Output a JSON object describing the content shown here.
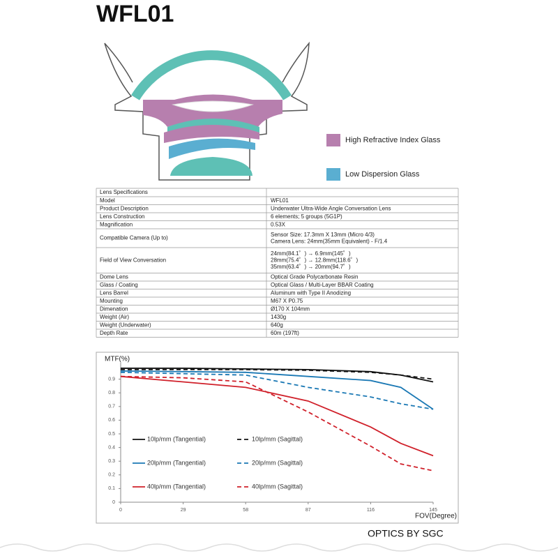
{
  "header": {
    "title": "WFL01"
  },
  "legend": {
    "items": [
      {
        "label": "High Refractive Index Glass",
        "color": "#b77fae"
      },
      {
        "label": "Low Dispersion Glass",
        "color": "#5aaed1"
      }
    ]
  },
  "table": {
    "caption": "Lens Specifications",
    "rows": [
      [
        "Model",
        [
          "WFL01"
        ]
      ],
      [
        "Product Description",
        [
          "Underwater Ultra-Wide Angle Conversation Lens"
        ]
      ],
      [
        "Lens Construction",
        [
          "6 elements; 5 groups (5G1P)"
        ]
      ],
      [
        "Magnification",
        [
          "0.53X"
        ]
      ],
      [
        "Compatible Camera (Up to)",
        [
          "Sensor Size: 17.3mm X 13mm (Micro 4/3)",
          "Camera Lens: 24mm(35mm Equivalent) - F/1.4"
        ]
      ],
      [
        "Field of View Conversation",
        [
          "24mm(84.1゜) → 6.9mm(145゜)",
          "28mm(75.4゜) → 12.8mm(118.6゜)",
          "35mm(63.4゜) → 20mm(94.7゜)"
        ]
      ],
      [
        "Dome Lens",
        [
          "Optical Grade Polycarbonate Resin"
        ]
      ],
      [
        "Glass / Coating",
        [
          "Optical Glass / Multi-Layer BBAR Coating"
        ]
      ],
      [
        "Lens Barrel",
        [
          "Aluminum with Type II Anodizing"
        ]
      ],
      [
        "Mounting",
        [
          "M67 X P0.75"
        ]
      ],
      [
        "Dimenation",
        [
          "Ø170 X 104mm"
        ]
      ],
      [
        "Weight (Air)",
        [
          "1430g"
        ]
      ],
      [
        "Weight (Underwater)",
        [
          "640g"
        ]
      ],
      [
        "Depth Rate",
        [
          "60m (197ft)"
        ]
      ]
    ]
  },
  "chart_data": {
    "type": "line",
    "y_label": "MTF(%)",
    "x_label": "FOV(Degree)",
    "x": [
      0,
      29,
      58,
      87,
      116,
      130,
      145
    ],
    "xlim": [
      0,
      145
    ],
    "xticks": [
      0,
      29,
      58,
      87,
      116,
      145
    ],
    "ylim": [
      0,
      1
    ],
    "yticks": [
      0,
      0.1,
      0.2,
      0.3,
      0.4,
      0.5,
      0.6,
      0.7,
      0.8,
      0.9
    ],
    "series": [
      {
        "name": "10lp/mm (Tangential)",
        "color": "#111111",
        "style": "solid",
        "values": [
          0.98,
          0.98,
          0.975,
          0.97,
          0.955,
          0.93,
          0.88
        ]
      },
      {
        "name": "10lp/mm (Sagittal)",
        "color": "#111111",
        "style": "dashed",
        "values": [
          0.97,
          0.97,
          0.97,
          0.965,
          0.95,
          0.93,
          0.9
        ]
      },
      {
        "name": "20lp/mm (Tangential)",
        "color": "#1a78b4",
        "style": "solid",
        "values": [
          0.96,
          0.955,
          0.95,
          0.92,
          0.89,
          0.84,
          0.68
        ]
      },
      {
        "name": "20lp/mm (Sagittal)",
        "color": "#1a78b4",
        "style": "dashed",
        "values": [
          0.95,
          0.94,
          0.93,
          0.84,
          0.77,
          0.72,
          0.68
        ]
      },
      {
        "name": "40lp/mm (Tangential)",
        "color": "#d0202a",
        "style": "solid",
        "values": [
          0.92,
          0.88,
          0.84,
          0.74,
          0.55,
          0.43,
          0.34
        ]
      },
      {
        "name": "40lp/mm (Sagittal)",
        "color": "#d0202a",
        "style": "dashed",
        "values": [
          0.92,
          0.91,
          0.88,
          0.66,
          0.41,
          0.28,
          0.23
        ]
      }
    ]
  },
  "footer": {
    "brand": "OPTICS BY SGC"
  }
}
